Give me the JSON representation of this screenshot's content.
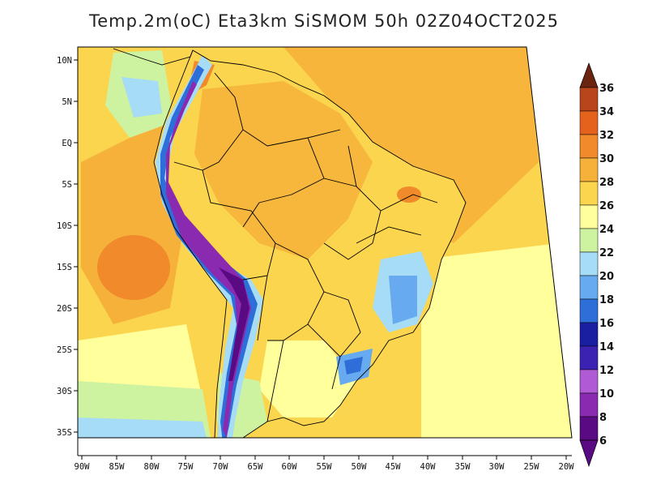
{
  "title": "Temp.2m(oC) Eta3km SiSMOM 50h 02Z04OCT2025",
  "axes": {
    "lat_labels": [
      "10N",
      "5N",
      "EQ",
      "5S",
      "10S",
      "15S",
      "20S",
      "25S",
      "30S",
      "35S"
    ],
    "lon_labels": [
      "90W",
      "85W",
      "80W",
      "75W",
      "70W",
      "65W",
      "60W",
      "55W",
      "50W",
      "45W",
      "40W",
      "35W",
      "30W",
      "25W",
      "20W"
    ]
  },
  "colorbar": {
    "labels": [
      "36",
      "34",
      "32",
      "30",
      "28",
      "26",
      "24",
      "22",
      "20",
      "18",
      "16",
      "14",
      "12",
      "10",
      "8",
      "6"
    ],
    "colors": {
      "c6": "#5a0a82",
      "c8": "#8a2ab0",
      "c10": "#b15ad6",
      "c12": "#3b22b2",
      "c14": "#1a1ea0",
      "c16": "#2d6ed8",
      "c18": "#67aaf0",
      "c20": "#a6dcf5",
      "c22": "#cdf2a0",
      "c24": "#ffff9c",
      "c26": "#fbd54e",
      "c28": "#f6b13a",
      "c30": "#f08a2a",
      "c32": "#e4621c",
      "c34": "#b8461a",
      "c36": "#6b2410"
    }
  }
}
